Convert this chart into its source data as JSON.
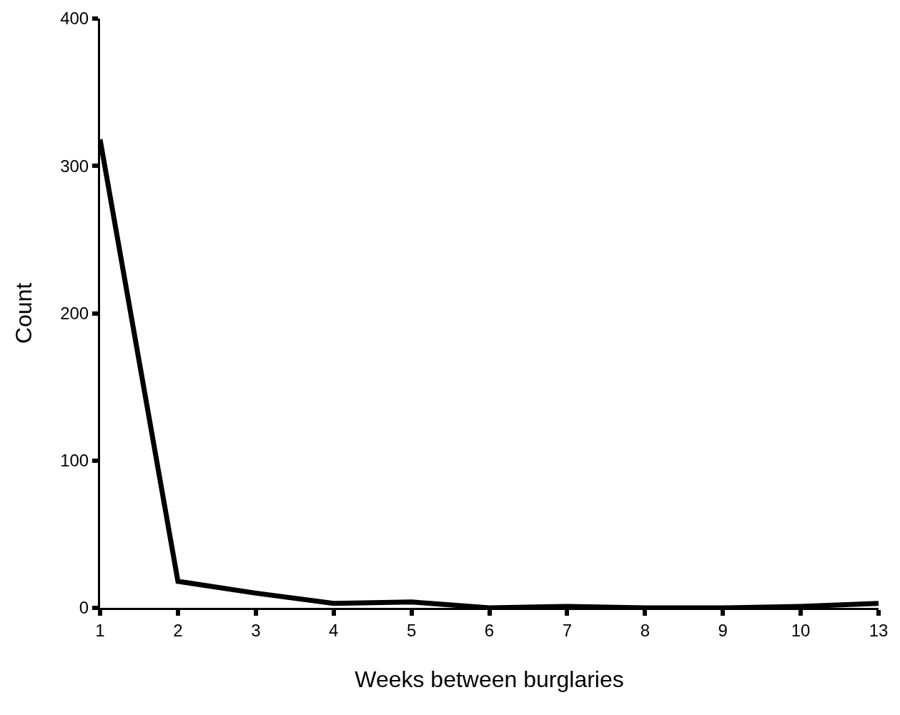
{
  "chart_data": {
    "type": "line",
    "xlabel": "Weeks between burglaries",
    "ylabel": "Count",
    "categories": [
      "1",
      "2",
      "3",
      "4",
      "5",
      "6",
      "7",
      "8",
      "9",
      "10",
      "13"
    ],
    "series": [
      {
        "color": "#000000",
        "values": [
          318,
          18,
          10,
          3,
          4,
          0,
          1,
          0,
          0,
          1,
          3
        ]
      }
    ],
    "ylim": [
      0,
      400
    ],
    "yticks": [
      0,
      100,
      200,
      300,
      400
    ],
    "marker": "none",
    "line_style": "solid"
  }
}
